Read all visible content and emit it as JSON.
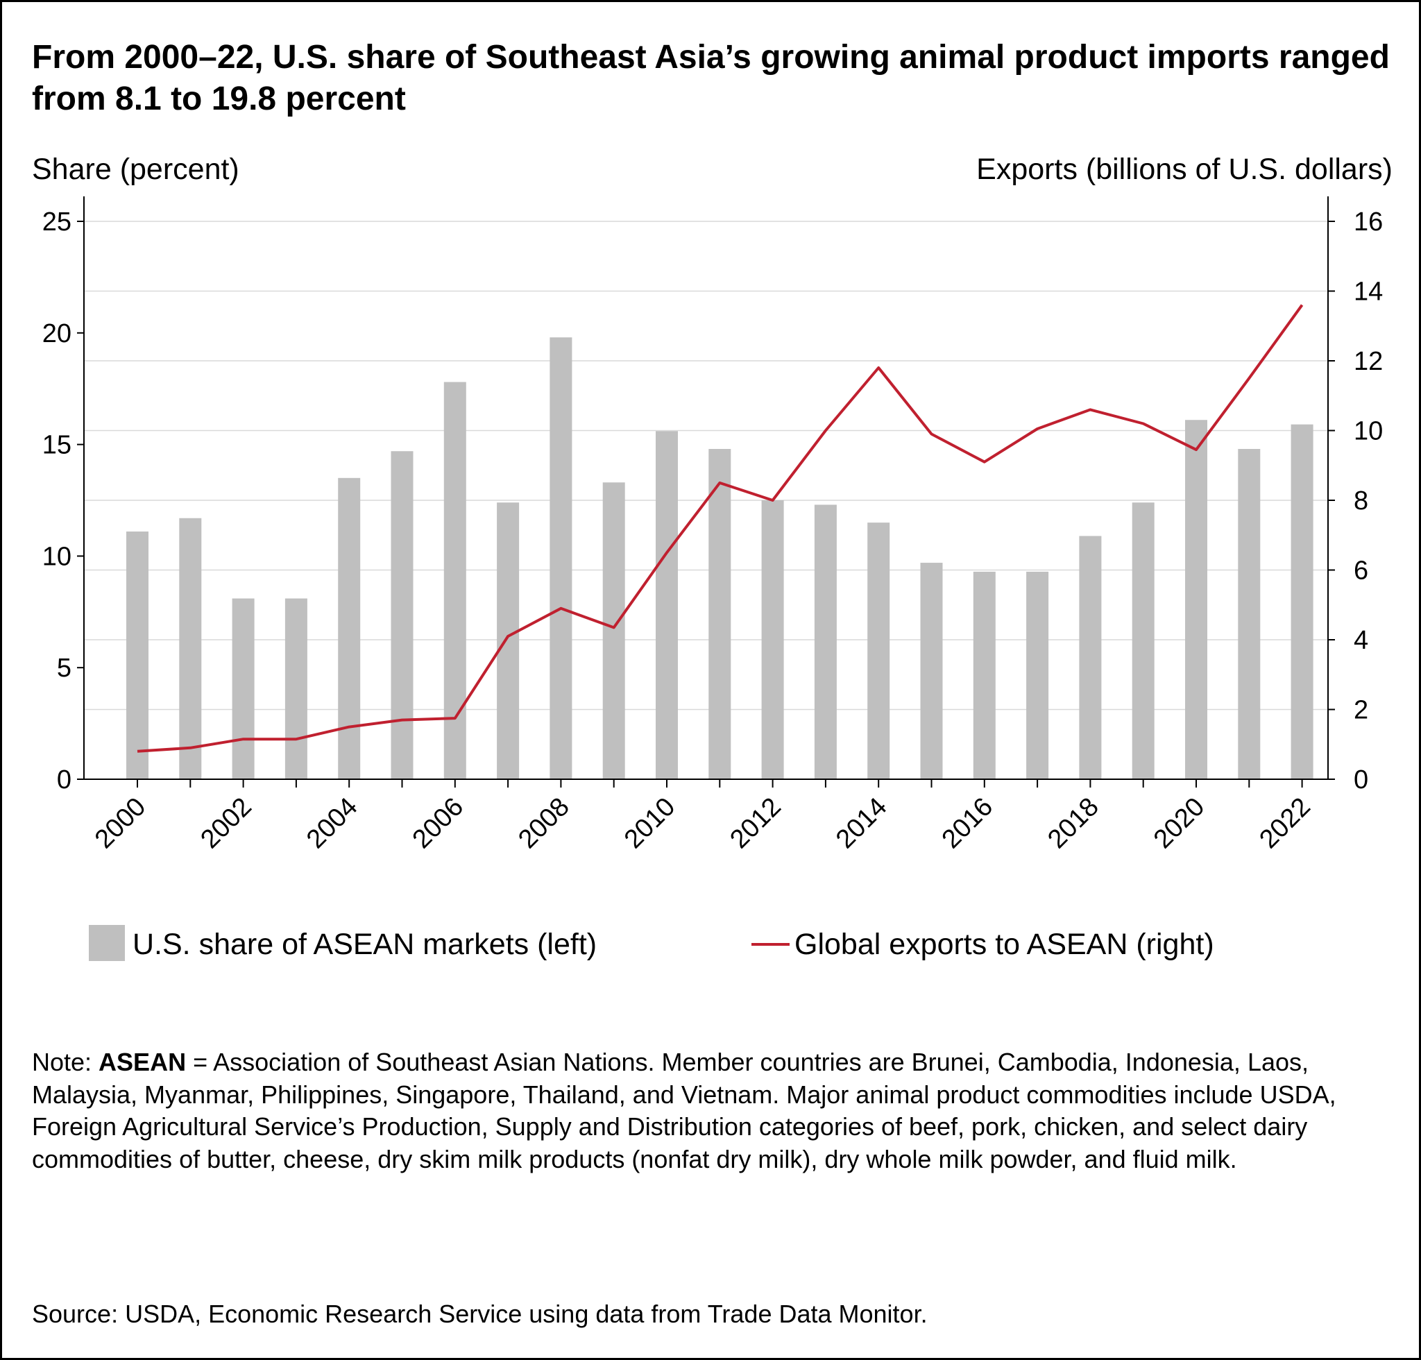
{
  "title": "From 2000–22, U.S. share of Southeast Asia’s growing animal product imports ranged from 8.1 to 19.8 percent",
  "note": {
    "prefix": "Note: ",
    "term": "ASEAN",
    "text": " = Association of Southeast Asian Nations. Member countries are Brunei, Cambodia, Indonesia, Laos, Malaysia, Myanmar, Philippines, Singapore, Thailand, and Vietnam. Major animal product commodities include USDA, Foreign Agricultural Service’s Production, Supply and Distribution categories of beef, pork, chicken, and select dairy commodities of butter, cheese, dry skim milk products (nonfat dry milk), dry whole milk powder, and fluid milk."
  },
  "source": "Source: USDA, Economic Research Service using data from Trade Data Monitor.",
  "chart_data": {
    "type": "bar",
    "ylabel_left": "Share (percent)",
    "ylabel_right": "Exports (billions of U.S. dollars)",
    "ylim_left": [
      0,
      25
    ],
    "ylim_right": [
      0,
      16
    ],
    "yticks_left": [
      0,
      5,
      10,
      15,
      20,
      25
    ],
    "yticks_right": [
      0,
      2,
      4,
      6,
      8,
      10,
      12,
      14,
      16
    ],
    "gridlines": "horizontal, at right-axis ticks",
    "legend_placement": "bottom",
    "categories": [
      2000,
      2001,
      2002,
      2003,
      2004,
      2005,
      2006,
      2007,
      2008,
      2009,
      2010,
      2011,
      2012,
      2013,
      2014,
      2015,
      2016,
      2017,
      2018,
      2019,
      2020,
      2021,
      2022
    ],
    "x_tick_labels": [
      "2000",
      "2002",
      "2004",
      "2006",
      "2008",
      "2010",
      "2012",
      "2014",
      "2016",
      "2018",
      "2020",
      "2022"
    ],
    "series": [
      {
        "name": "U.S. share of ASEAN markets (left)",
        "type": "bar",
        "axis": "left",
        "color": "#bfbfbf",
        "values": [
          11.1,
          11.7,
          8.1,
          8.1,
          13.5,
          14.7,
          17.8,
          12.4,
          19.8,
          13.3,
          15.6,
          14.8,
          12.5,
          12.3,
          11.5,
          9.7,
          9.3,
          9.3,
          10.9,
          12.4,
          16.1,
          14.8,
          15.9
        ]
      },
      {
        "name": "Global exports to ASEAN (right)",
        "type": "line",
        "axis": "right",
        "color": "#c0202f",
        "values": [
          0.8,
          0.9,
          1.15,
          1.15,
          1.5,
          1.7,
          1.75,
          4.1,
          4.9,
          4.35,
          6.5,
          8.5,
          8.0,
          10.0,
          11.8,
          9.9,
          9.1,
          10.05,
          10.6,
          10.2,
          9.45,
          11.5,
          13.6
        ]
      }
    ]
  }
}
